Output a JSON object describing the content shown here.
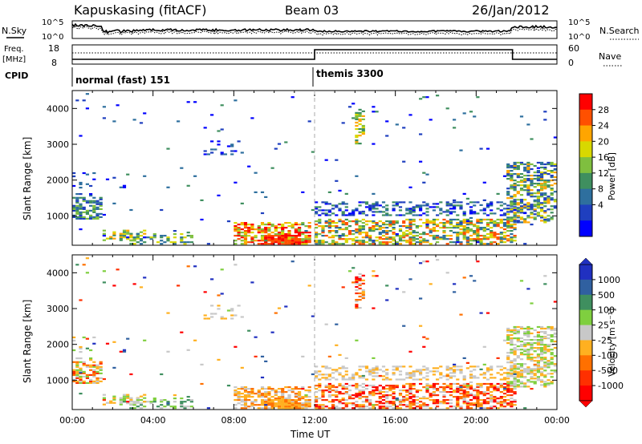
{
  "header": {
    "station": "Kapuskasing (fitACF)",
    "beam": "Beam 03",
    "date": "26/Jan/2012"
  },
  "top_panels": {
    "noise_label": "N.Sky",
    "noise_ticks": [
      "10^5",
      "10^0"
    ],
    "noise_right_ticks": [
      "10^5",
      "10^0"
    ],
    "noise_right_label": "N.Search",
    "freq_label_1": "Freq.",
    "freq_label_2": "[MHz]",
    "freq_ticks": [
      "18",
      "8"
    ],
    "nave_ticks": [
      "60",
      "0"
    ],
    "nave_label": "Nave",
    "cpid_label": "CPID",
    "cpid_1": "normal (fast) 151",
    "cpid_2": "themis 3300"
  },
  "chart_data": [
    {
      "type": "heatmap",
      "panel": "power",
      "ylabel": "Slant Range [km]",
      "xlabel": "Time UT",
      "x_ticks": [
        "00:00",
        "04:00",
        "08:00",
        "12:00",
        "16:00",
        "20:00",
        "00:00"
      ],
      "y_ticks": [
        "1000",
        "2000",
        "3000",
        "4000"
      ],
      "xlim_hours": [
        0,
        24
      ],
      "ylim_km": [
        180,
        4500
      ],
      "colorbar_label": "Power [dB]",
      "colorbar_ticks": [
        "4",
        "8",
        "12",
        "16",
        "20",
        "24",
        "28"
      ],
      "colors": [
        "#0000ff",
        "#1f3fbf",
        "#2e6f9e",
        "#3f8f5f",
        "#7fbf3f",
        "#d8d800",
        "#ffa500",
        "#ff5000",
        "#ff0000"
      ]
    },
    {
      "type": "heatmap",
      "panel": "velocity",
      "ylabel": "Slant Range [km]",
      "xlabel": "Time UT",
      "x_ticks": [
        "00:00",
        "04:00",
        "08:00",
        "12:00",
        "16:00",
        "20:00",
        "00:00"
      ],
      "y_ticks": [
        "1000",
        "2000",
        "3000",
        "4000"
      ],
      "xlim_hours": [
        0,
        24
      ],
      "ylim_km": [
        180,
        4500
      ],
      "colorbar_label": "Velocity [m s⁻¹]",
      "colorbar_ticks": [
        "1000",
        "500",
        "100",
        "25",
        "-25",
        "-100",
        "-500",
        "-1000"
      ],
      "colors": [
        "#2030c0",
        "#3060a0",
        "#3f8f5f",
        "#7fcf3f",
        "#c8c8c8",
        "#ffb020",
        "#ff7000",
        "#ff3000",
        "#ff0000"
      ]
    }
  ]
}
